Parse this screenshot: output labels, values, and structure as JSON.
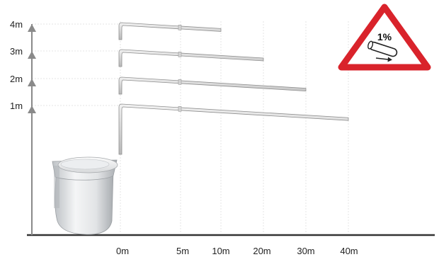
{
  "diagram": {
    "height_labels": [
      "4m",
      "3m",
      "2m",
      "1m"
    ],
    "distance_labels": [
      "0m",
      "5m",
      "10m",
      "20m",
      "30m",
      "40m"
    ],
    "pipes": [
      {
        "rise_m": 4,
        "run_m": 10
      },
      {
        "rise_m": 3,
        "run_m": 20
      },
      {
        "rise_m": 2,
        "run_m": 30
      },
      {
        "rise_m": 1,
        "run_m": 40
      }
    ]
  },
  "warning_sign": {
    "text": "1%",
    "icon": "pipe-slope-icon",
    "border_color": "#d9232b"
  },
  "colors": {
    "pipe": "#c9c9c9",
    "arrow": "#8a8a8a",
    "grid": "#e4e4e4",
    "ground": "#333333"
  }
}
